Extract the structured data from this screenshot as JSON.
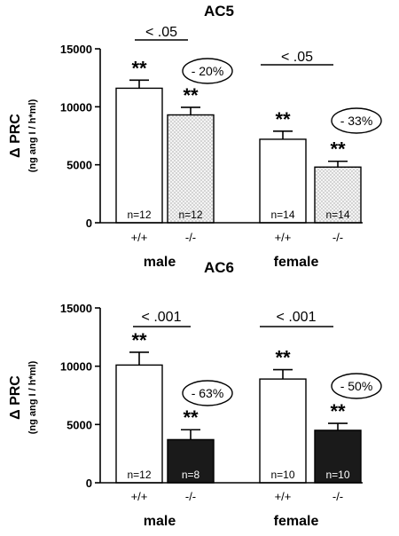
{
  "colors": {
    "open": "#ffffff",
    "dotted_fill": "#f4f4f4",
    "dot": "#5a5a5a",
    "solid": "#1a1a1a",
    "stroke": "#000000"
  },
  "chart_data": [
    {
      "type": "bar",
      "title": "AC5",
      "ylabel": "Δ PRC",
      "ylabel_sub": "(ng ang I / h*ml)",
      "ylim": [
        0,
        15000
      ],
      "yticks": [
        0,
        5000,
        10000,
        15000
      ],
      "groups": [
        "male",
        "female"
      ],
      "genotypes": [
        "+/+",
        "-/-"
      ],
      "bars": [
        {
          "group": "male",
          "genotype": "+/+",
          "value": 11600,
          "error": 700,
          "n": "n=12",
          "sig": "**",
          "fill": "open"
        },
        {
          "group": "male",
          "genotype": "-/-",
          "value": 9300,
          "error": 650,
          "n": "n=12",
          "sig": "**",
          "fill": "dotted"
        },
        {
          "group": "female",
          "genotype": "+/+",
          "value": 7200,
          "error": 700,
          "n": "n=14",
          "sig": "**",
          "fill": "open"
        },
        {
          "group": "female",
          "genotype": "-/-",
          "value": 4800,
          "error": 500,
          "n": "n=14",
          "sig": "**",
          "fill": "dotted"
        }
      ],
      "comparisons": [
        {
          "group": "male",
          "p": "< .05",
          "change": "- 20%"
        },
        {
          "group": "female",
          "p": "< .05",
          "change": "- 33%"
        }
      ]
    },
    {
      "type": "bar",
      "title": "AC6",
      "ylabel": "Δ PRC",
      "ylabel_sub": "(ng ang I / h*ml)",
      "ylim": [
        0,
        15000
      ],
      "yticks": [
        0,
        5000,
        10000,
        15000
      ],
      "groups": [
        "male",
        "female"
      ],
      "genotypes": [
        "+/+",
        "-/-"
      ],
      "bars": [
        {
          "group": "male",
          "genotype": "+/+",
          "value": 10100,
          "error": 1100,
          "n": "n=12",
          "sig": "**",
          "fill": "open"
        },
        {
          "group": "male",
          "genotype": "-/-",
          "value": 3700,
          "error": 850,
          "n": "n=8",
          "sig": "**",
          "fill": "solid"
        },
        {
          "group": "female",
          "genotype": "+/+",
          "value": 8900,
          "error": 800,
          "n": "n=10",
          "sig": "**",
          "fill": "open"
        },
        {
          "group": "female",
          "genotype": "-/-",
          "value": 4500,
          "error": 600,
          "n": "n=10",
          "sig": "**",
          "fill": "solid"
        }
      ],
      "comparisons": [
        {
          "group": "male",
          "p": "< .001",
          "change": "- 63%"
        },
        {
          "group": "female",
          "p": "< .001",
          "change": "- 50%"
        }
      ]
    }
  ]
}
